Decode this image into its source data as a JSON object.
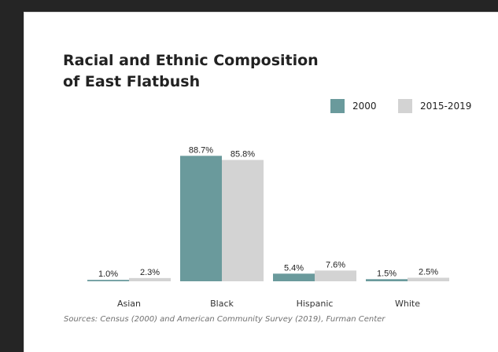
{
  "chart_data": {
    "type": "bar",
    "title_line1": "Racial and Ethnic Composition",
    "title_line2": "of East Flatbush",
    "categories": [
      "Asian",
      "Black",
      "Hispanic",
      "White"
    ],
    "series": [
      {
        "name": "2000",
        "values": [
          1.0,
          88.7,
          5.4,
          1.5
        ],
        "labels": [
          "1.0%",
          "88.7%",
          "5.4%",
          "1.5%"
        ],
        "color": "#6a9a9c"
      },
      {
        "name": "2015-2019",
        "values": [
          2.3,
          85.8,
          7.6,
          2.5
        ],
        "labels": [
          "2.3%",
          "85.8%",
          "7.6%",
          "2.5%"
        ],
        "color": "#d3d3d3"
      }
    ],
    "ylim": [
      0,
      100
    ],
    "grid": false,
    "legend_position": "top-right",
    "source": "Sources: Census (2000) and American Community Survey (2019), Furman Center"
  }
}
